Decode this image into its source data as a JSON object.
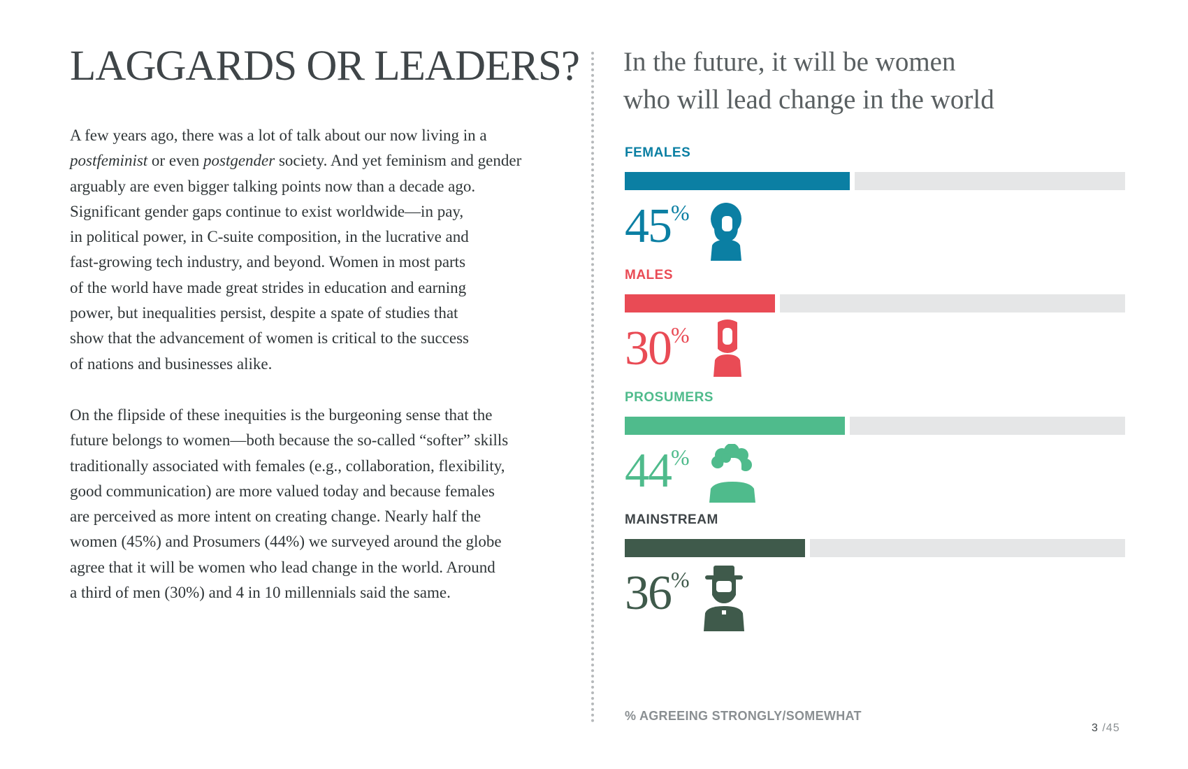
{
  "page": {
    "title": "LAGGARDS OR LEADERS?",
    "paragraph1": [
      "A few years ago, there was a lot of talk about our now living in a",
      [
        "postfeminist",
        " or even ",
        "postgender",
        " society. And yet feminism and gender"
      ],
      "arguably are even bigger talking points now than a decade ago.",
      "Significant gender gaps continue to exist worldwide—in pay,",
      "in political power, in C-suite composition, in the lucrative and",
      "fast-growing tech industry, and beyond. Women in most parts",
      "of the world have made great strides in education and earning",
      "power, but inequalities persist, despite a spate of studies that",
      "show that the advancement of women is critical to the success",
      "of nations and businesses alike."
    ],
    "paragraph2": [
      "On the flipside of these inequities is the burgeoning sense that the",
      "future belongs to women—both because the so-called “softer” skills",
      "traditionally associated with females (e.g., collaboration, flexibility,",
      "good communication) are more valued today and because females",
      "are perceived as more intent on creating change. Nearly half the",
      "women (45%) and Prosumers (44%) we surveyed around the globe",
      "agree that it will be women who lead change in the world. Around",
      "a third of men (30%) and 4 in 10 millennials said the same."
    ],
    "page_number": {
      "current": "3",
      "separator": " /",
      "total": "45"
    }
  },
  "chart_data": {
    "type": "bar",
    "orientation": "horizontal",
    "title": "In the future, it will be women who will lead change in the world",
    "title_lines": [
      "In the future, it will be women",
      "who will lead change in the world"
    ],
    "categories": [
      "FEMALES",
      "MALES",
      "PROSUMERS",
      "MAINSTREAM"
    ],
    "values": [
      45,
      30,
      44,
      36
    ],
    "labels": [
      "45",
      "30",
      "44",
      "36"
    ],
    "unit": "%",
    "xlim": [
      0,
      100
    ],
    "colors": [
      "#0b7fa3",
      "#e94b55",
      "#4fbb8c",
      "#3f5a4b"
    ],
    "track_color": "#e5e6e7",
    "icons": [
      "woman-icon",
      "man-icon",
      "woman-curly-hair-icon",
      "man-hat-icon"
    ],
    "footnote": "% AGREEING STRONGLY/SOMEWHAT"
  }
}
